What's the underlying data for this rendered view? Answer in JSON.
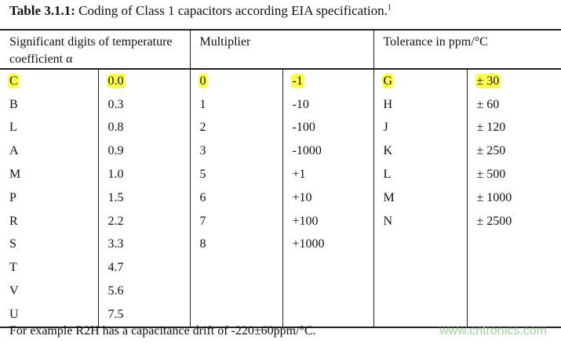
{
  "title": {
    "label": "Table 3.1.1:",
    "text": " Coding of Class 1 capacitors according EIA specification.",
    "sup": "1"
  },
  "headers": {
    "sig": "Significant digits of temperature coefficient α",
    "mult": "Multiplier",
    "tol": "Tolerance in ppm/°C"
  },
  "highlight_color": "#ffff4d",
  "rows": [
    [
      "C",
      "0.0",
      "0",
      "-1",
      "G",
      "± 30"
    ],
    [
      "B",
      "0.3",
      "1",
      "-10",
      "H",
      "± 60"
    ],
    [
      "L",
      "0.8",
      "2",
      "-100",
      "J",
      "± 120"
    ],
    [
      "A",
      "0.9",
      "3",
      "-1000",
      "K",
      "± 250"
    ],
    [
      "M",
      "1.0",
      "5",
      "+1",
      "L",
      "± 500"
    ],
    [
      "P",
      "1.5",
      "6",
      "+10",
      "M",
      "± 1000"
    ],
    [
      "R",
      "2.2",
      "7",
      "+100",
      "N",
      "± 2500"
    ],
    [
      "S",
      "3.3",
      "8",
      "+1000",
      "",
      ""
    ],
    [
      "T",
      "4.7",
      "",
      "",
      "",
      ""
    ],
    [
      "V",
      "5.6",
      "",
      "",
      "",
      ""
    ],
    [
      "U",
      "7.5",
      "",
      "",
      "",
      ""
    ]
  ],
  "highlighted_row": 0,
  "footer": "For example R2H has a capacitance drift of -220±60ppm/°C.",
  "watermark": "www.cntronics.com"
}
